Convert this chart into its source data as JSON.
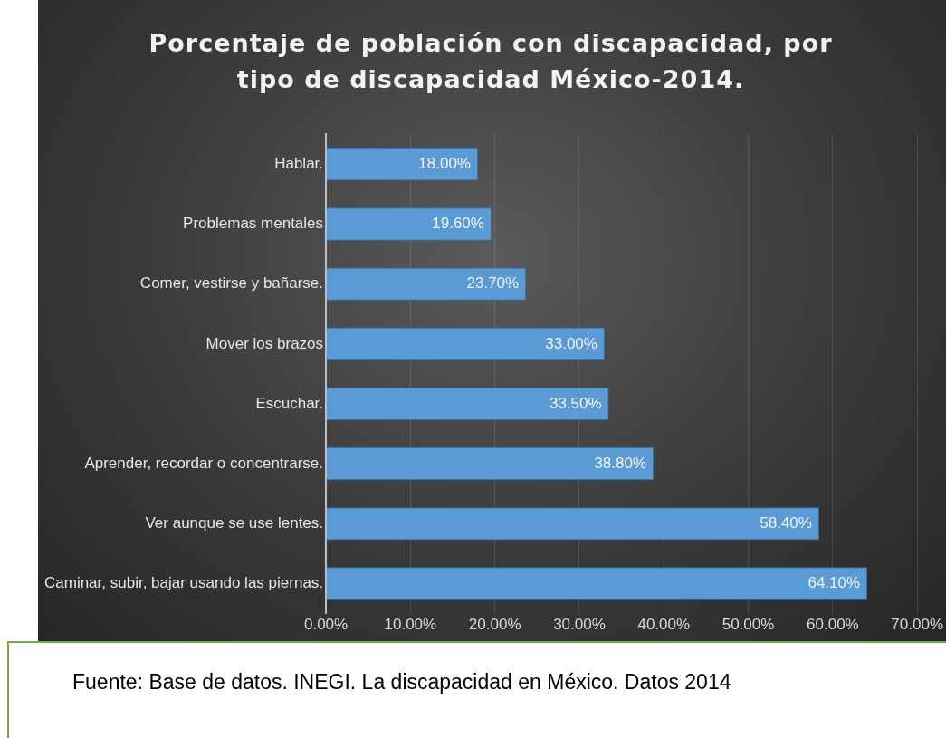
{
  "chart_data": {
    "type": "bar",
    "orientation": "horizontal",
    "title": "Porcentaje de población con discapacidad, por tipo de discapacidad México-2014.",
    "categories": [
      "Hablar.",
      "Problemas mentales",
      "Comer, vestirse y bañarse.",
      "Mover los brazos",
      "Escuchar.",
      "Aprender, recordar o concentrarse.",
      "Ver aunque se use lentes.",
      "Caminar, subir, bajar usando las piernas."
    ],
    "values": [
      18,
      19.6,
      23.7,
      33,
      33.5,
      38.8,
      58.4,
      64.1
    ],
    "value_labels": [
      "18.00%",
      "19.60%",
      "23.70%",
      "33.00%",
      "33.50%",
      "38.80%",
      "58.40%",
      "64.10%"
    ],
    "color": "#5b9bd5",
    "xlim": [
      0,
      70
    ],
    "xticks": [
      {
        "value": 0,
        "label": "0.00%"
      },
      {
        "value": 10,
        "label": "10.00%"
      },
      {
        "value": 20,
        "label": "20.00%"
      },
      {
        "value": 30,
        "label": "30.00%"
      },
      {
        "value": 40,
        "label": "40.00%"
      },
      {
        "value": 50,
        "label": "50.00%"
      },
      {
        "value": 60,
        "label": "60.00%"
      },
      {
        "value": 70,
        "label": "70.00%"
      }
    ],
    "grid": "x",
    "legend": false,
    "annotations": [
      "Fuente: Base de datos. INEGI. La discapacidad en México. Datos 2014"
    ]
  }
}
